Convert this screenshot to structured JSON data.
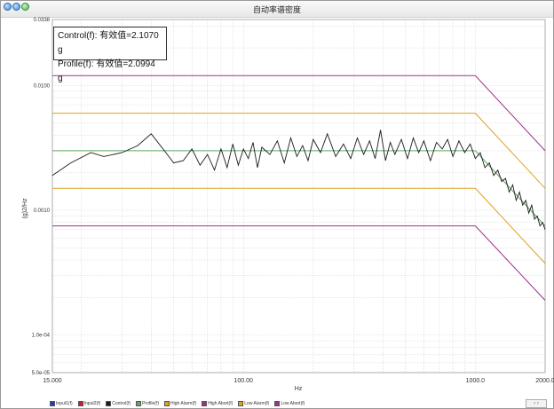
{
  "window": {
    "title": "自动率谱密度"
  },
  "info": {
    "control_line": "Control(f): 有效值=2.1070 g",
    "profile_line": "Profile(f): 有效值=2.0994 g"
  },
  "chart_data": {
    "type": "line",
    "xscale": "log",
    "yscale": "log",
    "xlabel": "Hz",
    "ylabel": "(g)2/Hz",
    "xlim": [
      15,
      2000
    ],
    "ylim": [
      5e-05,
      0.0338
    ],
    "y_ticks": [
      {
        "value": 0.0338,
        "label": "0.0338"
      },
      {
        "value": 0.01,
        "label": "0.0100"
      },
      {
        "value": 0.001,
        "label": "0.0010"
      },
      {
        "value": 0.0001,
        "label": "1.0e-04"
      },
      {
        "value": 5e-05,
        "label": "5.0e-05"
      }
    ],
    "x_ticks": [
      {
        "value": 15,
        "label": "15.000"
      },
      {
        "value": 100,
        "label": "100.00"
      },
      {
        "value": 1000,
        "label": "1000.0"
      },
      {
        "value": 2000,
        "label": "2000.0"
      }
    ],
    "grid": true,
    "series": [
      {
        "name": "Profile(f)",
        "color": "#5fa65f",
        "x": [
          15,
          1000,
          2000
        ],
        "y": [
          0.003,
          0.003,
          0.00075
        ]
      },
      {
        "name": "High Alarm(f)",
        "color": "#e0a020",
        "x": [
          15,
          1000,
          2000
        ],
        "y": [
          0.006,
          0.006,
          0.0015
        ]
      },
      {
        "name": "Low Alarm(f)",
        "color": "#e0a020",
        "x": [
          15,
          1000,
          2000
        ],
        "y": [
          0.0015,
          0.0015,
          0.000375
        ]
      },
      {
        "name": "High Abort(f)",
        "color": "#a0308a",
        "x": [
          15,
          1000,
          2000
        ],
        "y": [
          0.012,
          0.012,
          0.003
        ]
      },
      {
        "name": "Low Abort(f)",
        "color": "#a0308a",
        "x": [
          15,
          1000,
          2000
        ],
        "y": [
          0.00075,
          0.00075,
          0.00019
        ]
      },
      {
        "name": "Control(f)",
        "color": "#1a1a1a",
        "x": [
          15,
          18,
          22,
          25,
          30,
          35,
          40,
          45,
          50,
          55,
          60,
          65,
          70,
          75,
          80,
          85,
          90,
          95,
          100,
          105,
          110,
          115,
          120,
          130,
          140,
          150,
          160,
          170,
          180,
          190,
          200,
          215,
          230,
          250,
          270,
          290,
          310,
          330,
          350,
          370,
          390,
          410,
          430,
          450,
          480,
          510,
          540,
          570,
          600,
          640,
          680,
          720,
          760,
          800,
          850,
          900,
          950,
          1000,
          1050,
          1100,
          1150,
          1200,
          1250,
          1300,
          1350,
          1400,
          1450,
          1500,
          1550,
          1600,
          1650,
          1700,
          1750,
          1800,
          1850,
          1900,
          1950,
          2000
        ],
        "y": [
          0.0019,
          0.0024,
          0.0029,
          0.0027,
          0.0029,
          0.0033,
          0.0041,
          0.0031,
          0.0024,
          0.0025,
          0.0031,
          0.0023,
          0.0028,
          0.0021,
          0.0031,
          0.0022,
          0.0034,
          0.0023,
          0.0031,
          0.0026,
          0.0035,
          0.0022,
          0.0032,
          0.0028,
          0.0036,
          0.0024,
          0.0038,
          0.0027,
          0.0033,
          0.0025,
          0.0037,
          0.0029,
          0.0041,
          0.0027,
          0.0034,
          0.0026,
          0.0038,
          0.0028,
          0.0036,
          0.0026,
          0.0044,
          0.0025,
          0.0035,
          0.0028,
          0.0037,
          0.0026,
          0.0038,
          0.0029,
          0.0036,
          0.0025,
          0.0035,
          0.0031,
          0.0037,
          0.0027,
          0.0036,
          0.0029,
          0.0034,
          0.0026,
          0.0029,
          0.0022,
          0.0024,
          0.0019,
          0.0021,
          0.0017,
          0.0018,
          0.0014,
          0.0016,
          0.0012,
          0.0014,
          0.0011,
          0.0012,
          0.00095,
          0.0011,
          0.00085,
          0.0009,
          0.00075,
          0.0008,
          0.0007
        ]
      }
    ]
  },
  "bottom_legend": [
    {
      "label": "Input1(f)",
      "color": "#1f3fbf",
      "checked": false
    },
    {
      "label": "Input2(f)",
      "color": "#c0203a",
      "checked": false
    },
    {
      "label": "Control(f)",
      "color": "#1a1a1a",
      "checked": true
    },
    {
      "label": "Profile(f)",
      "color": "#5fa65f",
      "checked": true
    },
    {
      "label": "High Alarm(f)",
      "color": "#e0a020",
      "checked": true
    },
    {
      "label": "High Abort(f)",
      "color": "#a0308a",
      "checked": true
    },
    {
      "label": "Low Alarm(f)",
      "color": "#e0a020",
      "checked": true
    },
    {
      "label": "Low Abort(f)",
      "color": "#a0308a",
      "checked": true
    }
  ],
  "scroll_arrows": "‹ ›"
}
